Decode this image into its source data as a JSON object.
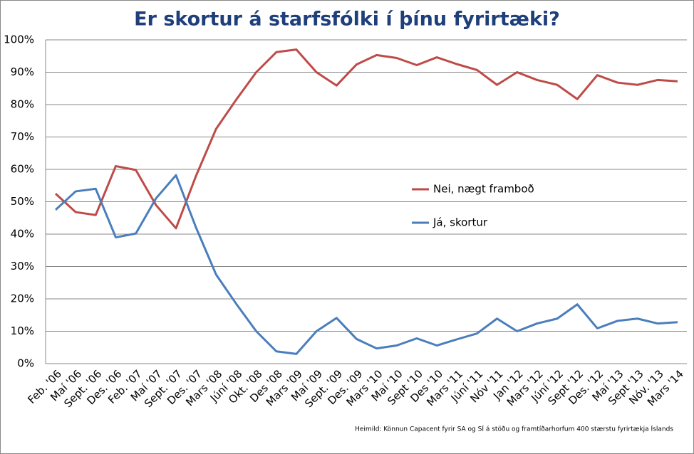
{
  "chart_data": {
    "type": "line",
    "title": "Er skortur á starfsfólki í þínu fyrirtæki?",
    "source": "Heimild: Könnun Capacent fyrir SA og SÍ á stöðu og framtíðarhorfum 400 stærstu fyrirtækja Íslands",
    "categories": [
      "Feb. '06",
      "Maí '06",
      "Sept. '06",
      "Des. '06",
      "Feb. '07",
      "Maí '07",
      "Sept. '07",
      "Des. '07",
      "Mars '08",
      "Júní '08",
      "Okt. '08",
      "Des '08",
      "Mars '09",
      "Maí '09",
      "Sept. '09",
      "Des. '09",
      "Mars '10",
      "Maí '10",
      "Sept '10",
      "Des '10",
      "Mars '11",
      "Júní '11",
      "Nóv '11",
      "Jan '12",
      "Mars '12",
      "Júní '12",
      "Sept '12",
      "Des. '12",
      "Maí '13",
      "Sept '13",
      "Nóv. '13",
      "Mars '14"
    ],
    "series": [
      {
        "name": "Nei, nægt framboð",
        "color": "#be4b48",
        "values": [
          52.5,
          46.8,
          45.9,
          61,
          59.8,
          49,
          41.8,
          58,
          72.5,
          81.5,
          90,
          96.2,
          97,
          90,
          85.9,
          92.4,
          95.3,
          94.4,
          92.2,
          94.6,
          92.5,
          90.7,
          86.1,
          90,
          87.6,
          86.1,
          81.7,
          89.1,
          86.8,
          86.1,
          87.6,
          87.2
        ]
      },
      {
        "name": "Já, skortur",
        "color": "#4a7ebb",
        "values": [
          47.5,
          53.2,
          54,
          39,
          40.2,
          51,
          58.2,
          42,
          27.5,
          18.5,
          10,
          3.8,
          3,
          10,
          14.1,
          7.6,
          4.7,
          5.6,
          7.8,
          5.6,
          7.5,
          9.3,
          13.9,
          10,
          12.4,
          13.9,
          18.3,
          10.9,
          13.2,
          13.9,
          12.4,
          12.8
        ]
      }
    ],
    "ylim": [
      0,
      100
    ],
    "yticks": [
      {
        "value": 0,
        "label": "0%"
      },
      {
        "value": 10,
        "label": "10%"
      },
      {
        "value": 20,
        "label": "20%"
      },
      {
        "value": 30,
        "label": "30%"
      },
      {
        "value": 40,
        "label": "40%"
      },
      {
        "value": 50,
        "label": "50%"
      },
      {
        "value": 60,
        "label": "60%"
      },
      {
        "value": 70,
        "label": "70%"
      },
      {
        "value": 80,
        "label": "80%"
      },
      {
        "value": 90,
        "label": "90%"
      },
      {
        "value": 100,
        "label": "100%"
      }
    ],
    "grid": true
  }
}
